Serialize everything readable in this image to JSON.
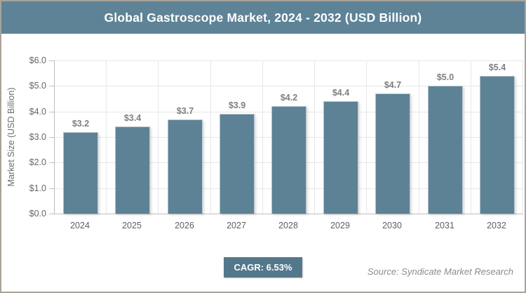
{
  "header": {
    "title": "Global Gastroscope Market, 2024 - 2032 (USD Billion)"
  },
  "chart_data": {
    "type": "bar",
    "title": "Global Gastroscope Market, 2024 - 2032 (USD Billion)",
    "categories": [
      "2024",
      "2025",
      "2026",
      "2027",
      "2028",
      "2029",
      "2030",
      "2031",
      "2032"
    ],
    "values": [
      3.2,
      3.4,
      3.7,
      3.9,
      4.2,
      4.4,
      4.7,
      5.0,
      5.4
    ],
    "bar_labels": [
      "$3.2",
      "$3.4",
      "$3.7",
      "$3.9",
      "$4.2",
      "$4.4",
      "$4.7",
      "$5.0",
      "$5.4"
    ],
    "xlabel": "",
    "ylabel": "Market Size (USD Billion)",
    "ylim": [
      0,
      6
    ],
    "ytick_labels_top_to_bottom": [
      "$6.0",
      "$5.0",
      "$4.0",
      "$3.0",
      "$2.0",
      "$1.0",
      "$0.0"
    ],
    "grid": true,
    "legend": false
  },
  "footer": {
    "cagr_label": "CAGR: 6.53%",
    "source": "Source: Syndicate Market Research"
  },
  "colors": {
    "title_bar": "#5e8396",
    "bar": "#5d8295",
    "badge": "#54788b",
    "frame_border": "#a9a39a",
    "grid": "#e7e7e7",
    "axis": "#bfbfbf",
    "value_label": "#7f7f7f",
    "source_text": "#8c8c8c"
  }
}
